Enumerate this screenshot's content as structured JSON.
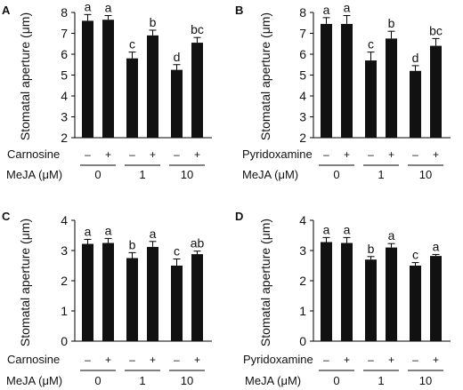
{
  "colors": {
    "bar": "#111111",
    "axis": "#000000"
  },
  "chart_data": [
    {
      "panel_label": "A",
      "type": "bar",
      "ylabel": "Stomatal aperture (μm)",
      "ylim": [
        2,
        8
      ],
      "yticks": [
        "2",
        "3",
        "4",
        "5",
        "6",
        "7",
        "8"
      ],
      "treatment_label": "Carnosine",
      "treatment_signs": [
        "–",
        "+",
        "–",
        "+",
        "–",
        "+"
      ],
      "group_label": "MeJA (μM)",
      "groups": [
        "0",
        "1",
        "10"
      ],
      "values": [
        7.6,
        7.65,
        5.8,
        6.9,
        5.25,
        6.55
      ],
      "errors": [
        0.3,
        0.2,
        0.3,
        0.25,
        0.25,
        0.25
      ],
      "letters": [
        "a",
        "a",
        "c",
        "b",
        "d",
        "bc"
      ]
    },
    {
      "panel_label": "B",
      "type": "bar",
      "ylabel": "Stomatal aperture (μm)",
      "ylim": [
        2,
        8
      ],
      "yticks": [
        "2",
        "3",
        "4",
        "5",
        "6",
        "7",
        "8"
      ],
      "treatment_label": "Pyridoxamine",
      "treatment_signs": [
        "–",
        "+",
        "–",
        "+",
        "–",
        "+"
      ],
      "group_label": "MeJA (μM)",
      "groups": [
        "0",
        "1",
        "10"
      ],
      "values": [
        7.45,
        7.45,
        5.7,
        6.75,
        5.2,
        6.4
      ],
      "errors": [
        0.3,
        0.4,
        0.4,
        0.35,
        0.25,
        0.35
      ],
      "letters": [
        "a",
        "a",
        "c",
        "b",
        "d",
        "bc"
      ]
    },
    {
      "panel_label": "C",
      "type": "bar",
      "ylabel": "Stomatal aperture (μm)",
      "ylim": [
        0,
        4
      ],
      "yticks": [
        "0",
        "1",
        "2",
        "3",
        "4"
      ],
      "treatment_label": "Carnosine",
      "treatment_signs": [
        "–",
        "+",
        "–",
        "+",
        "–",
        "+"
      ],
      "group_label": "MeJA (μM)",
      "groups": [
        "0",
        "1",
        "10"
      ],
      "values": [
        3.22,
        3.25,
        2.75,
        3.12,
        2.5,
        2.88
      ],
      "errors": [
        0.15,
        0.15,
        0.18,
        0.18,
        0.22,
        0.1
      ],
      "letters": [
        "a",
        "a",
        "b",
        "a",
        "c",
        "ab"
      ]
    },
    {
      "panel_label": "D",
      "type": "bar",
      "ylabel": "Stomatal aperture (μm)",
      "ylim": [
        0,
        4
      ],
      "yticks": [
        "0",
        "1",
        "2",
        "3",
        "4"
      ],
      "treatment_label": "Pyridoxamine",
      "treatment_signs": [
        "–",
        "+",
        "–",
        "+",
        "–",
        "+"
      ],
      "group_label": "MeJA (μM)",
      "groups": [
        "0",
        "1",
        "10"
      ],
      "values": [
        3.28,
        3.25,
        2.7,
        3.1,
        2.5,
        2.82
      ],
      "errors": [
        0.15,
        0.18,
        0.1,
        0.13,
        0.1,
        0.05
      ],
      "letters": [
        "a",
        "a",
        "b",
        "a",
        "c",
        "a"
      ]
    }
  ]
}
